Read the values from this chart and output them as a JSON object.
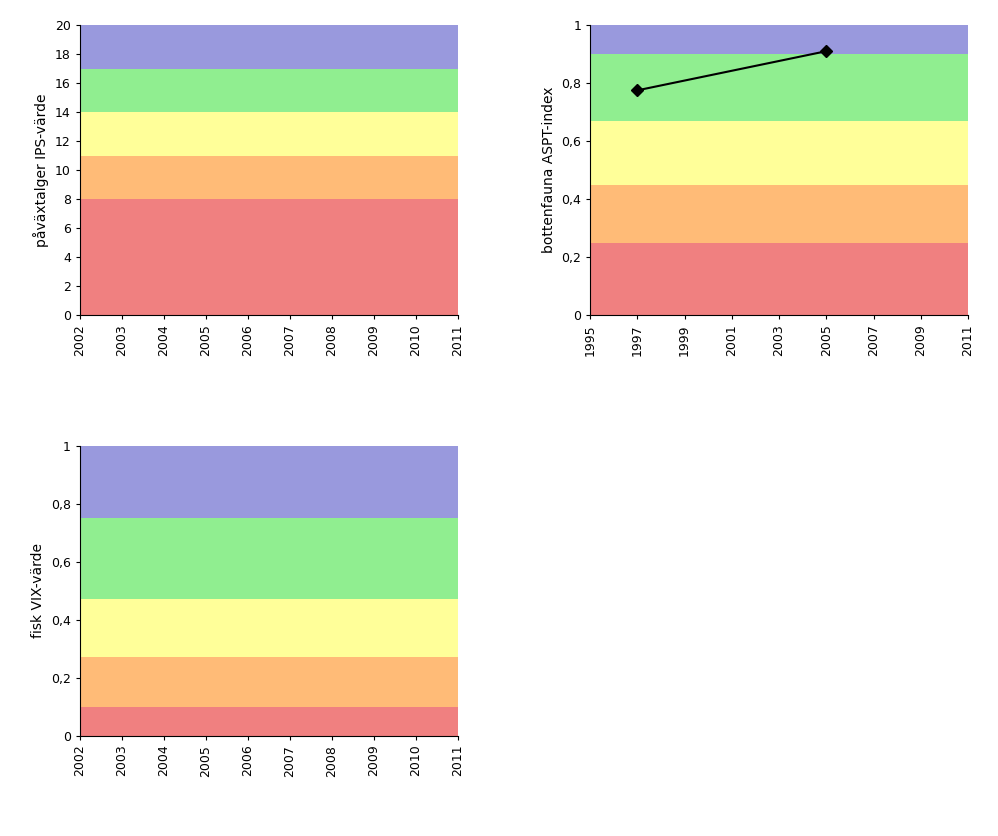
{
  "chart1": {
    "ylabel": "påväxtalger IPS-värde",
    "xlim": [
      2002,
      2011
    ],
    "ylim": [
      0,
      20
    ],
    "yticks": [
      0,
      2,
      4,
      6,
      8,
      10,
      12,
      14,
      16,
      18,
      20
    ],
    "xticks": [
      2002,
      2003,
      2004,
      2005,
      2006,
      2007,
      2008,
      2009,
      2010,
      2011
    ],
    "bands": [
      {
        "ymin": 0,
        "ymax": 8,
        "color": "#F08080"
      },
      {
        "ymin": 8,
        "ymax": 11,
        "color": "#FFBB77"
      },
      {
        "ymin": 11,
        "ymax": 14,
        "color": "#FFFF99"
      },
      {
        "ymin": 14,
        "ymax": 17,
        "color": "#90EE90"
      },
      {
        "ymin": 17,
        "ymax": 20,
        "color": "#9999DD"
      }
    ]
  },
  "chart2": {
    "ylabel": "bottenfauna ASPT-index",
    "xlim": [
      1995,
      2011
    ],
    "ylim": [
      0,
      1
    ],
    "yticks": [
      0,
      0.2,
      0.4,
      0.6,
      0.8,
      1.0
    ],
    "xticks": [
      1995,
      1997,
      1999,
      2001,
      2003,
      2005,
      2007,
      2009,
      2011
    ],
    "bands": [
      {
        "ymin": 0,
        "ymax": 0.25,
        "color": "#F08080"
      },
      {
        "ymin": 0.25,
        "ymax": 0.45,
        "color": "#FFBB77"
      },
      {
        "ymin": 0.45,
        "ymax": 0.67,
        "color": "#FFFF99"
      },
      {
        "ymin": 0.67,
        "ymax": 0.9,
        "color": "#90EE90"
      },
      {
        "ymin": 0.9,
        "ymax": 1.0,
        "color": "#9999DD"
      }
    ],
    "data_x": [
      1997,
      2005
    ],
    "data_y": [
      0.775,
      0.91
    ]
  },
  "chart3": {
    "ylabel": "fisk VIX-värde",
    "xlim": [
      2002,
      2011
    ],
    "ylim": [
      0,
      1
    ],
    "yticks": [
      0,
      0.2,
      0.4,
      0.6,
      0.8,
      1.0
    ],
    "xticks": [
      2002,
      2003,
      2004,
      2005,
      2006,
      2007,
      2008,
      2009,
      2010,
      2011
    ],
    "bands": [
      {
        "ymin": 0,
        "ymax": 0.1,
        "color": "#F08080"
      },
      {
        "ymin": 0.1,
        "ymax": 0.27,
        "color": "#FFBB77"
      },
      {
        "ymin": 0.27,
        "ymax": 0.47,
        "color": "#FFFF99"
      },
      {
        "ymin": 0.47,
        "ymax": 0.75,
        "color": "#90EE90"
      },
      {
        "ymin": 0.75,
        "ymax": 1.0,
        "color": "#9999DD"
      }
    ]
  },
  "background_color": "#ffffff",
  "tick_label_fontsize": 9,
  "axis_label_fontsize": 10
}
